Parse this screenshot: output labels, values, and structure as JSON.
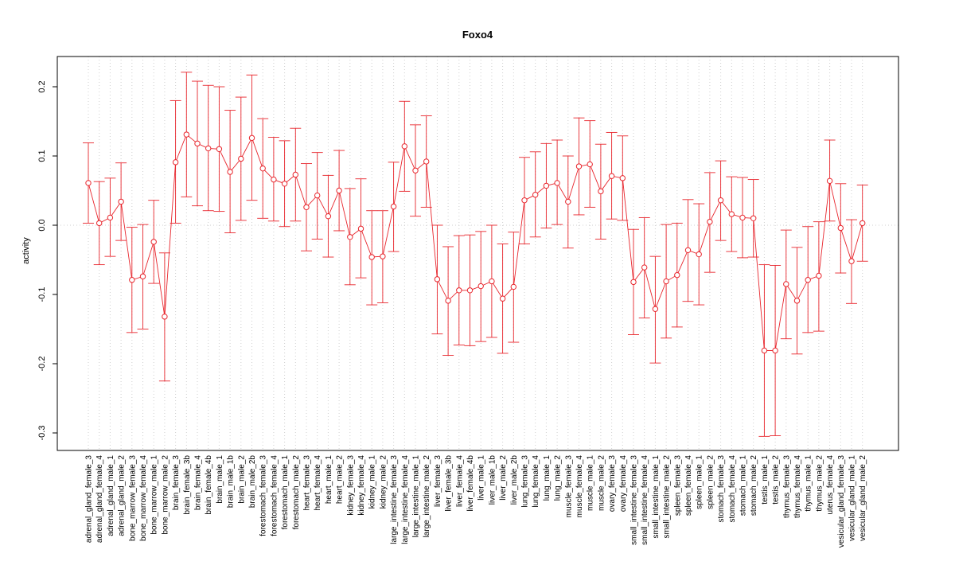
{
  "chart_data": {
    "type": "scatter",
    "title": "Foxo4",
    "xlabel": "",
    "ylabel": "activity",
    "ylim": [
      -0.34,
      0.245
    ],
    "yticks": [
      -0.3,
      -0.2,
      -0.1,
      0.0,
      0.1,
      0.2
    ],
    "ytick_labels": [
      "-0.3",
      "-0.2",
      "-0.1",
      "0.0",
      "0.1",
      "0.2"
    ],
    "grid": true,
    "color": "#e8262d",
    "series": [
      {
        "name": "",
        "categories": [
          "adrenal_gland_female_3",
          "adrenal_gland_female_4",
          "adrenal_gland_male_1",
          "adrenal_gland_male_2",
          "bone_marrow_female_3",
          "bone_marrow_female_4",
          "bone_marrow_male_1",
          "bone_marrow_male_2",
          "brain_female_3",
          "brain_female_3b",
          "brain_female_4",
          "brain_female_4b",
          "brain_male_1",
          "brain_male_1b",
          "brain_male_2",
          "brain_male_2b",
          "forestomach_female_3",
          "forestomach_female_4",
          "forestomach_male_1",
          "forestomach_male_2",
          "heart_female_3",
          "heart_female_4",
          "heart_male_1",
          "heart_male_2",
          "kidney_female_3",
          "kidney_female_4",
          "kidney_male_1",
          "kidney_male_2",
          "large_intestine_female_3",
          "large_intestine_female_4",
          "large_intestine_male_1",
          "large_intestine_male_2",
          "liver_female_3",
          "liver_female_3b",
          "liver_female_4",
          "liver_female_4b",
          "liver_male_1",
          "liver_male_1b",
          "liver_male_2",
          "liver_male_2b",
          "lung_female_3",
          "lung_female_4",
          "lung_male_1",
          "lung_male_2",
          "muscle_female_3",
          "muscle_female_4",
          "muscle_male_1",
          "muscle_male_2",
          "ovary_female_3",
          "ovary_female_4",
          "small_intestine_female_3",
          "small_intestine_female_4",
          "small_intestine_male_1",
          "small_intestine_male_2",
          "spleen_female_3",
          "spleen_female_4",
          "spleen_male_1",
          "spleen_male_2",
          "stomach_female_3",
          "stomach_female_4",
          "stomach_male_1",
          "stomach_male_2",
          "testis_male_1",
          "testis_male_2",
          "thymus_female_3",
          "thymus_female_4",
          "thymus_male_1",
          "thymus_male_2",
          "uterus_female_4",
          "vesicular_gland_female_3",
          "vesicular_gland_male_1",
          "vesicular_gland_male_2"
        ]
      }
    ],
    "values": [
      0.061,
      0.003,
      0.011,
      0.034,
      -0.079,
      -0.074,
      -0.024,
      -0.132,
      0.091,
      0.131,
      0.118,
      0.111,
      0.11,
      0.077,
      0.096,
      0.126,
      0.082,
      0.066,
      0.06,
      0.073,
      0.026,
      0.043,
      0.013,
      0.05,
      -0.017,
      -0.005,
      -0.046,
      -0.045,
      0.027,
      0.114,
      0.079,
      0.092,
      -0.078,
      -0.109,
      -0.094,
      -0.094,
      -0.088,
      -0.081,
      -0.106,
      -0.089,
      0.036,
      0.044,
      0.057,
      0.061,
      0.034,
      0.085,
      0.088,
      0.049,
      0.071,
      0.068,
      -0.082,
      -0.061,
      -0.121,
      -0.081,
      -0.072,
      -0.036,
      -0.042,
      0.005,
      0.036,
      0.016,
      0.011,
      0.01,
      -0.181,
      -0.181,
      -0.085,
      -0.109,
      -0.079,
      -0.073,
      0.064,
      -0.004,
      -0.052,
      0.003
    ],
    "lower": [
      0.003,
      -0.057,
      -0.045,
      -0.022,
      -0.155,
      -0.15,
      -0.084,
      -0.225,
      0.003,
      0.041,
      0.028,
      0.021,
      0.02,
      -0.011,
      0.007,
      0.036,
      0.01,
      0.006,
      -0.002,
      0.006,
      -0.037,
      -0.02,
      -0.046,
      -0.008,
      -0.086,
      -0.076,
      -0.115,
      -0.112,
      -0.038,
      0.049,
      0.013,
      0.026,
      -0.157,
      -0.188,
      -0.173,
      -0.174,
      -0.168,
      -0.162,
      -0.185,
      -0.169,
      -0.027,
      -0.017,
      -0.004,
      0.001,
      -0.033,
      0.015,
      0.026,
      -0.02,
      0.009,
      0.007,
      -0.158,
      -0.134,
      -0.199,
      -0.163,
      -0.147,
      -0.11,
      -0.115,
      -0.068,
      -0.022,
      -0.038,
      -0.047,
      -0.046,
      -0.305,
      -0.304,
      -0.164,
      -0.186,
      -0.155,
      -0.153,
      0.006,
      -0.069,
      -0.113,
      -0.052
    ],
    "upper": [
      0.119,
      0.063,
      0.068,
      0.09,
      -0.003,
      0.001,
      0.036,
      -0.04,
      0.18,
      0.221,
      0.208,
      0.202,
      0.2,
      0.166,
      0.185,
      0.217,
      0.154,
      0.127,
      0.122,
      0.14,
      0.089,
      0.105,
      0.072,
      0.108,
      0.053,
      0.067,
      0.021,
      0.021,
      0.091,
      0.179,
      0.145,
      0.158,
      0.0,
      -0.031,
      -0.015,
      -0.014,
      -0.009,
      0.0,
      -0.027,
      -0.01,
      0.098,
      0.106,
      0.118,
      0.123,
      0.1,
      0.155,
      0.151,
      0.117,
      0.134,
      0.129,
      -0.006,
      0.011,
      -0.045,
      0.001,
      0.003,
      0.037,
      0.031,
      0.076,
      0.093,
      0.07,
      0.069,
      0.066,
      -0.057,
      -0.058,
      -0.007,
      -0.032,
      -0.002,
      0.005,
      0.123,
      0.06,
      0.008,
      0.058
    ]
  }
}
